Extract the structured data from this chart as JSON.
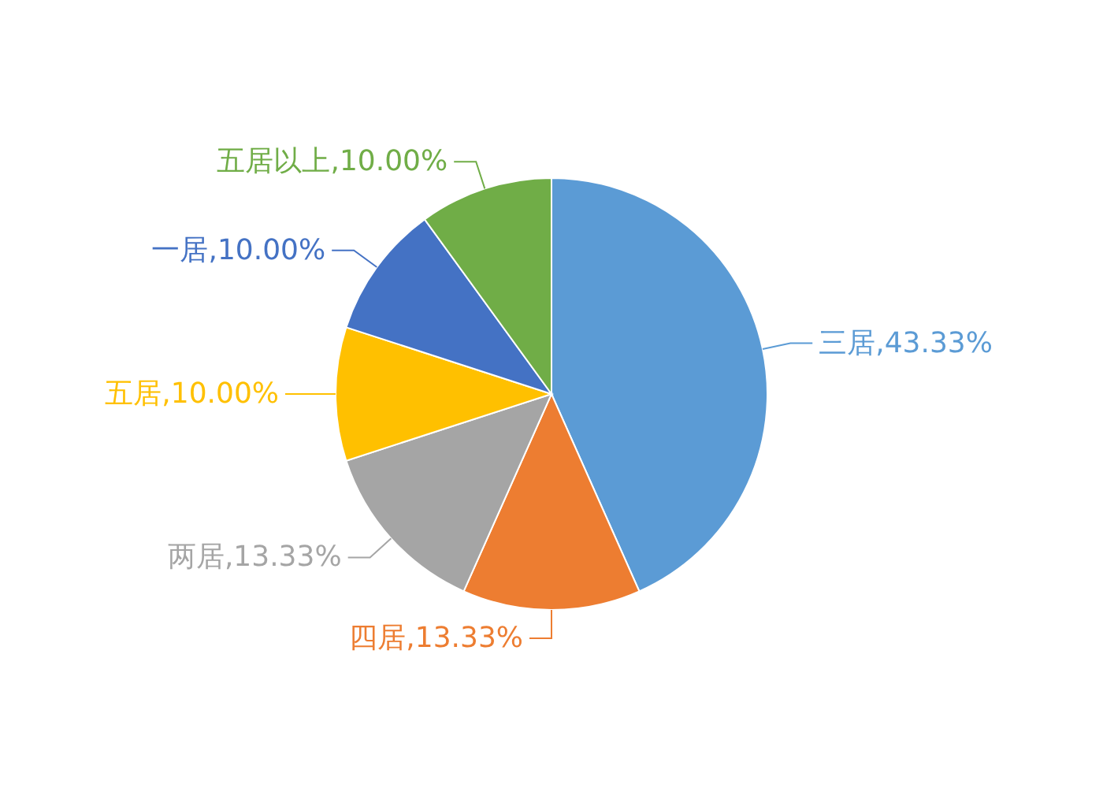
{
  "chart_data": {
    "type": "pie",
    "categories": [
      "三居",
      "四居",
      "两居",
      "五居",
      "一居",
      "五居以上"
    ],
    "values": [
      43.33,
      13.33,
      13.33,
      10,
      10,
      10
    ],
    "value_labels": [
      "43.33%",
      "13.33%",
      "13.33%",
      "10.00%",
      "10.00%",
      "10.00%"
    ],
    "colors": [
      "#5b9bd5",
      "#ed7d31",
      "#a5a5a5",
      "#ffc000",
      "#4472c4",
      "#70ad47"
    ],
    "legend": false
  }
}
